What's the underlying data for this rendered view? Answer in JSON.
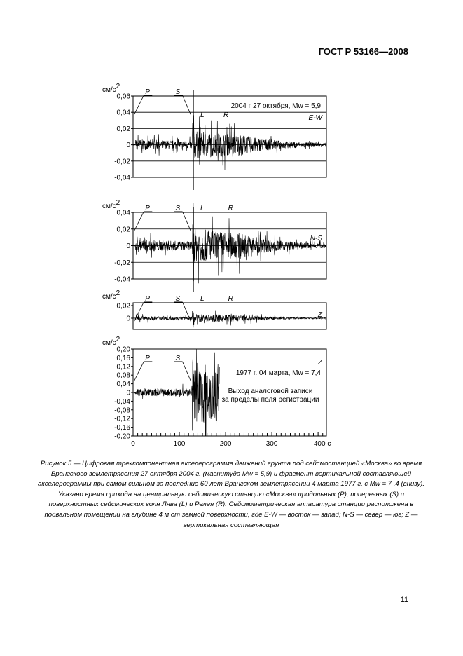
{
  "header": {
    "standard": "ГОСТ Р 53166—2008"
  },
  "caption": "Рисунок 5 — Цифровая трехкомпонентная акселерограмма движений грунта под сейсмостанцией «Москва» во время Врангского землетрясения 27 октября 2004 г. (магнитуда Mw = 5,9) и фрагмент вертикальной составляющей акселерограммы при самом сильном за последние 60 лет Врангском землетрясении 4 марта 1977 г. с Mw = 7 ,4 (внизу). Указано время прихода на центральную сейсмическую станцию «Москва» продольных (P), поперечных (S) и поверхностных сейсмических волн Лява (L) и Релея (R). Сейсмометрическая аппаратура станции расположена в подвальном помещении на глубине 4 м от земной поверхности, где E-W — восток — запад; N-S — север — юг; Z — вертикальная составляющая",
  "page_number": "11",
  "chart_data": [
    {
      "type": "line",
      "component": "E-W",
      "ylabel": "см/с2",
      "ylim": [
        -0.04,
        0.06
      ],
      "yticks": [
        "0,06",
        "0,04",
        "0,02",
        "0",
        "-0,02",
        "-0,04"
      ],
      "ytick_values": [
        0.06,
        0.04,
        0.02,
        0,
        -0.02,
        -0.04
      ],
      "annotation": "2004 г 27 октября, Mw = 5,9",
      "phases": {
        "P": 5,
        "S": 128,
        "L": 150,
        "R": 200
      },
      "xlim": [
        0,
        418
      ],
      "grid": true
    },
    {
      "type": "line",
      "component": "N-S",
      "ylabel": "см/с2",
      "ylim": [
        -0.04,
        0.04
      ],
      "yticks": [
        "0,04",
        "0,02",
        "0",
        "-0,02",
        "-0,04"
      ],
      "ytick_values": [
        0.04,
        0.02,
        0,
        -0.02,
        -0.04
      ],
      "annotation": "",
      "phases": {
        "P": 5,
        "S": 128,
        "L": 150,
        "R": 210
      },
      "xlim": [
        0,
        418
      ],
      "grid": true
    },
    {
      "type": "line",
      "component": "Z",
      "ylabel": "см/с2",
      "ylim": [
        -0.02,
        0.02
      ],
      "yticks": [
        "0,02",
        "0"
      ],
      "ytick_values": [
        0.02,
        0
      ],
      "annotation": "",
      "phases": {
        "P": 5,
        "S": 128,
        "L": 150,
        "R": 210
      },
      "xlim": [
        0,
        418
      ],
      "grid": false
    },
    {
      "type": "line",
      "component": "Z",
      "ylabel": "см/с2",
      "ylim": [
        -0.2,
        0.2
      ],
      "yticks": [
        "0,20",
        "0,16",
        "0,12",
        "0,08",
        "0,04",
        "0",
        "-0,04",
        "-0,08",
        "-0,12",
        "-0,16",
        "-0,20"
      ],
      "ytick_values": [
        0.2,
        0.16,
        0.12,
        0.08,
        0.04,
        0,
        -0.04,
        -0.08,
        -0.12,
        -0.16,
        -0.2
      ],
      "annotation": "1977 г. 04 марта, Mw = 7,4",
      "note": [
        "Выход аналоговой записи",
        "за пределы поля регистрации"
      ],
      "phases": {
        "P": 5,
        "S": 128
      },
      "xlim": [
        0,
        418
      ],
      "xticks": [
        "0",
        "100",
        "200",
        "300",
        "400 с"
      ],
      "xtick_values": [
        0,
        100,
        200,
        300,
        400
      ],
      "grid": false
    }
  ],
  "colors": {
    "trace": "#000000",
    "grid": "#000000"
  }
}
